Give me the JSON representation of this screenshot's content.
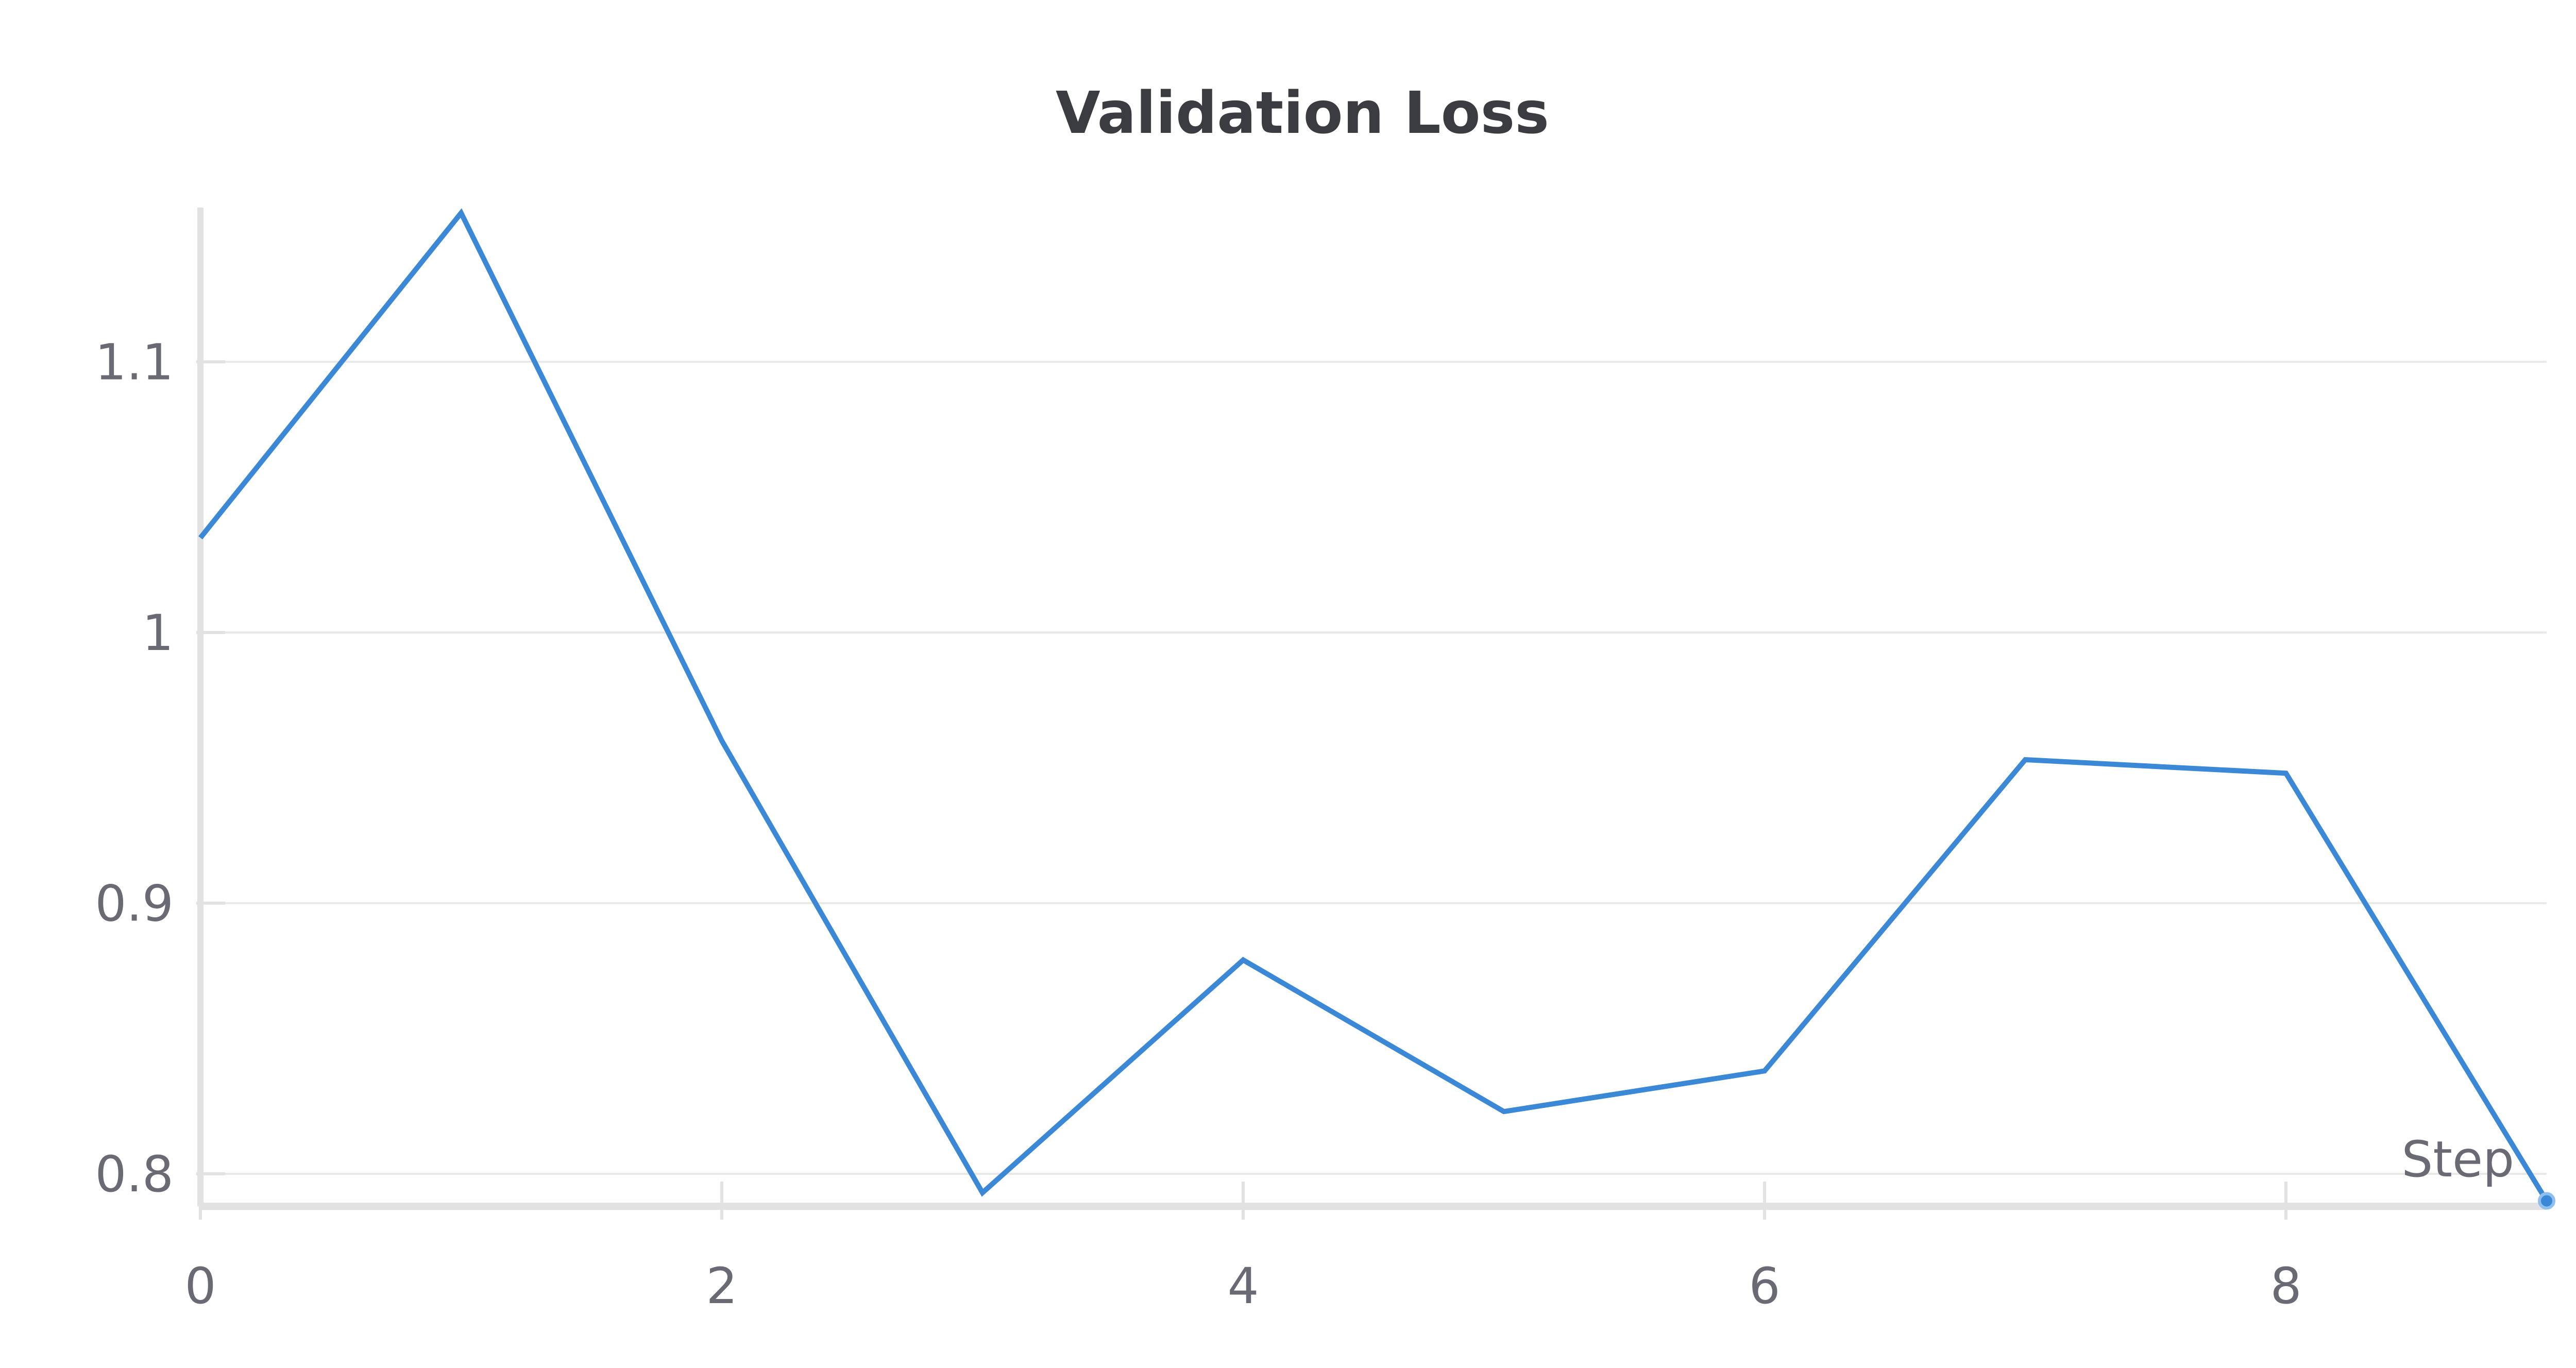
{
  "chart_data": {
    "type": "line",
    "title": "Validation Loss",
    "xlabel": "Step",
    "ylabel": "",
    "x": [
      0,
      1,
      2,
      3,
      4,
      5,
      6,
      7,
      8,
      9
    ],
    "series": [
      {
        "values": [
          1.035,
          1.155,
          0.96,
          0.793,
          0.879,
          0.823,
          0.838,
          0.953,
          0.948,
          0.79
        ]
      }
    ],
    "xlim": [
      0,
      9
    ],
    "ylim": [
      0.788,
      1.157
    ],
    "xticks": [
      0,
      2,
      4,
      6,
      8
    ],
    "xtick_labels": [
      "0",
      "2",
      "4",
      "6",
      "8"
    ],
    "yticks": [
      0.8,
      0.9,
      1.0,
      1.1
    ],
    "ytick_labels": [
      "0.8",
      "0.9",
      "1",
      "1.1"
    ],
    "grid": true,
    "legend": "none",
    "colors": {
      "line": "#3a88d6",
      "grid": "#e8e8e8",
      "axis": "#e2e2e2",
      "text": "#6a6a75",
      "title": "#3b3b42"
    }
  }
}
